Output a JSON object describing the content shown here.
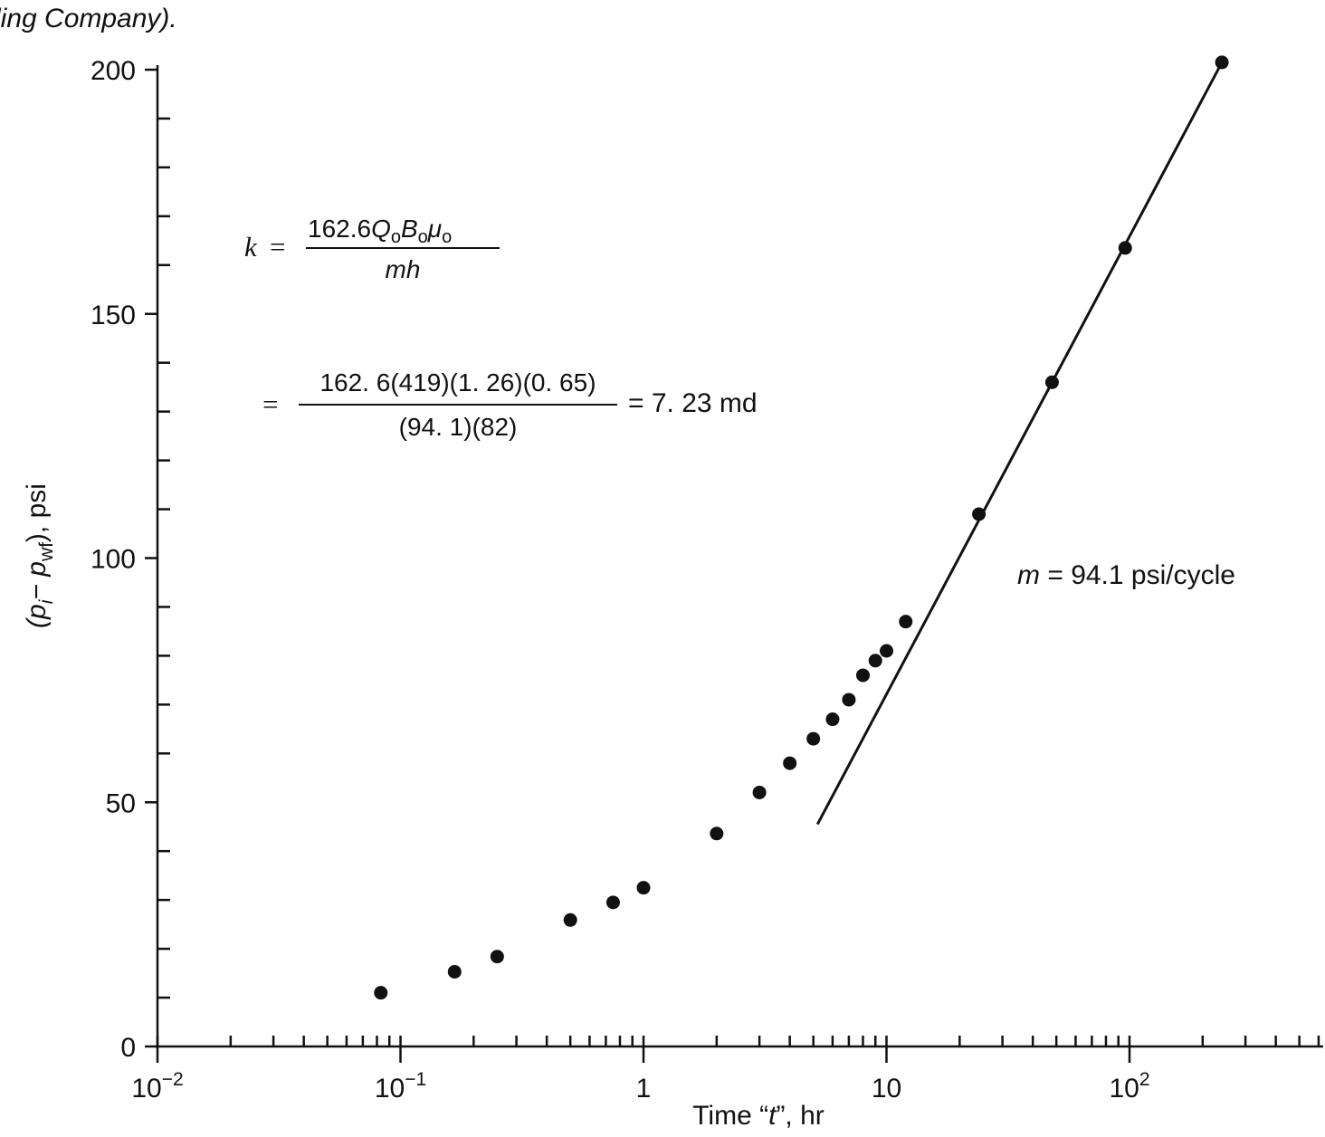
{
  "caption_fragment": "ling Company).",
  "chart_data": {
    "type": "scatter",
    "title": "",
    "x_scale": "log",
    "xlabel_parts": {
      "pre": "Time “",
      "var": "t",
      "post": "”, hr"
    },
    "ylabel_parts": {
      "open": "(p",
      "sub_i": "i",
      "minus": "− p",
      "sub_wf": "wf",
      "close": "), psi"
    },
    "xlim": [
      0.01,
      600
    ],
    "ylim": [
      0,
      200
    ],
    "y_ticks": [
      {
        "value": 0,
        "label": "0"
      },
      {
        "value": 50,
        "label": "50"
      },
      {
        "value": 100,
        "label": "100"
      },
      {
        "value": 150,
        "label": "150"
      },
      {
        "value": 200,
        "label": "200"
      }
    ],
    "y_minor_step": 10,
    "x_ticks": [
      {
        "value": 0.01,
        "base": "10",
        "exp": "−2"
      },
      {
        "value": 0.1,
        "base": "10",
        "exp": "−1"
      },
      {
        "value": 1,
        "base": "1",
        "exp": ""
      },
      {
        "value": 10,
        "base": "10",
        "exp": ""
      },
      {
        "value": 100,
        "base": "10",
        "exp": "2"
      }
    ],
    "grid": false,
    "series": [
      {
        "points": [
          {
            "x": 0.083,
            "y": 11
          },
          {
            "x": 0.167,
            "y": 15.3
          },
          {
            "x": 0.25,
            "y": 18.4
          },
          {
            "x": 0.5,
            "y": 25.9
          },
          {
            "x": 0.75,
            "y": 29.5
          },
          {
            "x": 1.0,
            "y": 32.5
          },
          {
            "x": 2.0,
            "y": 43.6
          },
          {
            "x": 3.0,
            "y": 52
          },
          {
            "x": 4.0,
            "y": 58
          },
          {
            "x": 5.0,
            "y": 63
          },
          {
            "x": 6.0,
            "y": 67
          },
          {
            "x": 7.0,
            "y": 71
          },
          {
            "x": 8.0,
            "y": 76
          },
          {
            "x": 9.0,
            "y": 79
          },
          {
            "x": 10.0,
            "y": 81
          },
          {
            "x": 12.0,
            "y": 87
          },
          {
            "x": 24.0,
            "y": 109
          },
          {
            "x": 48.0,
            "y": 136
          },
          {
            "x": 96.0,
            "y": 163.5
          },
          {
            "x": 240.0,
            "y": 201.5
          }
        ]
      }
    ],
    "trend_line": {
      "x1": 5.2,
      "y1": 45.5,
      "x2": 240.0,
      "y2": 201.5
    },
    "annotations": {
      "slope": {
        "var": "m",
        "text": " = 94.1 psi/cycle"
      },
      "formula": {
        "k_label": "k",
        "eq": "=",
        "numerator_lines": [
          "162.6",
          "Q",
          "o",
          "B",
          "o",
          "μ",
          "o"
        ],
        "denominator": "mh",
        "subst_numerator": "162. 6(419)(1. 26)(0. 65)",
        "subst_denominator": "(94. 1)(82)",
        "result": "= 7. 23 md"
      }
    }
  }
}
